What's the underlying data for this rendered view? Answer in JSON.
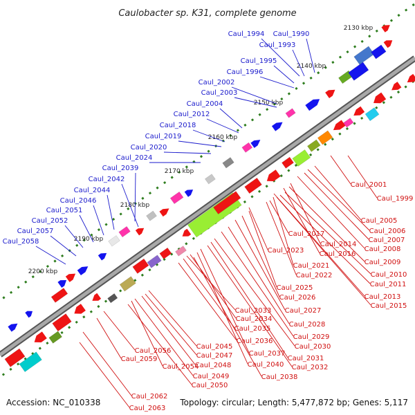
{
  "title": "Caulobacter sp. K31, complete genome",
  "footer": {
    "accession": "Accession: NC_010338",
    "summary": "Topology: circular; Length: 5,477,872 bp; Genes: 5,117"
  },
  "colors": {
    "backbone": "#9a9a9a",
    "backbone_edge": "#555555",
    "dash": "#2e7d1e",
    "forward_label": "#1a1acc",
    "reverse_label": "#d01010",
    "forward_gene": "#1414ee",
    "reverse_gene": "#ee1414"
  },
  "scale_ticks": [
    "2130 kbp",
    "2140 kbp",
    "2150 kbp",
    "2160 kbp",
    "2170 kbp",
    "2180 kbp",
    "2190 kbp",
    "2200 kbp"
  ],
  "forward_labels": [
    "Caul_1994",
    "Caul_1990",
    "Caul_1993",
    "Caul_1995",
    "Caul_1996",
    "Caul_2002",
    "Caul_2003",
    "Caul_2004",
    "Caul_2012",
    "Caul_2018",
    "Caul_2019",
    "Caul_2020",
    "Caul_2024",
    "Caul_2039",
    "Caul_2042",
    "Caul_2044",
    "Caul_2046",
    "Caul_2051",
    "Caul_2052",
    "Caul_2057",
    "Caul_2058"
  ],
  "reverse_labels": [
    "Caul_2001",
    "Caul_1999",
    "Caul_2005",
    "Caul_2006",
    "Caul_2007",
    "Caul_2008",
    "Caul_2017",
    "Caul_2014",
    "Caul_2016",
    "Caul_2023",
    "Caul_2009",
    "Caul_2010",
    "Caul_2021",
    "Caul_2011",
    "Caul_2022",
    "Caul_2025",
    "Caul_2013",
    "Caul_2026",
    "Caul_2015",
    "Caul_2027",
    "Caul_2033",
    "Caul_2034",
    "Caul_2028",
    "Caul_2035",
    "Caul_2029",
    "Caul_2036",
    "Caul_2030",
    "Caul_2056",
    "Caul_2045",
    "Caul_2037",
    "Caul_2031",
    "Caul_2059",
    "Caul_2047",
    "Caul_2054",
    "Caul_2048",
    "Caul_2040",
    "Caul_2032",
    "Caul_2049",
    "Caul_2038",
    "Caul_2050",
    "Caul_2062",
    "Caul_2063"
  ]
}
